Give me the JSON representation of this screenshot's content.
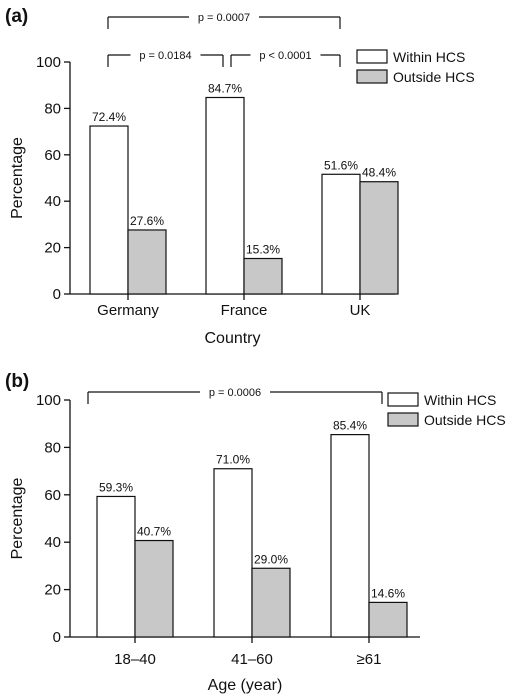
{
  "chart_data": [
    {
      "type": "bar",
      "panel_label": "(a)",
      "categories": [
        "Germany",
        "France",
        "UK"
      ],
      "series": [
        {
          "name": "Within HCS",
          "color": "#ffffff",
          "values": [
            72.4,
            84.7,
            51.6
          ],
          "labels": [
            "72.4%",
            "84.7%",
            "51.6%"
          ]
        },
        {
          "name": "Outside HCS",
          "color": "#c8c8c8",
          "values": [
            27.6,
            15.3,
            48.4
          ],
          "labels": [
            "27.6%",
            "15.3%",
            "48.4%"
          ]
        }
      ],
      "xlabel": "Country",
      "ylabel": "Percentage",
      "ylim": [
        0,
        100
      ],
      "yticks": [
        "0",
        "20",
        "40",
        "60",
        "80",
        "100"
      ],
      "legend": "top-right",
      "grid": false,
      "annotations": [
        {
          "text": "p = 0.0007",
          "from_category": 0,
          "to_category": 2,
          "level": 2
        },
        {
          "text": "p = 0.0184",
          "from_category": 0,
          "to_category": 1,
          "level": 1
        },
        {
          "text": "p < 0.0001",
          "from_category": 1,
          "to_category": 2,
          "level": 1
        }
      ]
    },
    {
      "type": "bar",
      "panel_label": "(b)",
      "categories": [
        "18–40",
        "41–60",
        "≥61"
      ],
      "series": [
        {
          "name": "Within HCS",
          "color": "#ffffff",
          "values": [
            59.3,
            71.0,
            85.4
          ],
          "labels": [
            "59.3%",
            "71.0%",
            "85.4%"
          ]
        },
        {
          "name": "Outside HCS",
          "color": "#c8c8c8",
          "values": [
            40.7,
            29.0,
            14.6
          ],
          "labels": [
            "40.7%",
            "29.0%",
            "14.6%"
          ]
        }
      ],
      "xlabel": "Age (year)",
      "ylabel": "Percentage",
      "ylim": [
        0,
        100
      ],
      "yticks": [
        "0",
        "20",
        "40",
        "60",
        "80",
        "100"
      ],
      "legend": "top-right",
      "grid": false,
      "annotations": [
        {
          "text": "p = 0.0006",
          "from_category": 0,
          "to_category": 2,
          "level": 1
        }
      ]
    }
  ]
}
